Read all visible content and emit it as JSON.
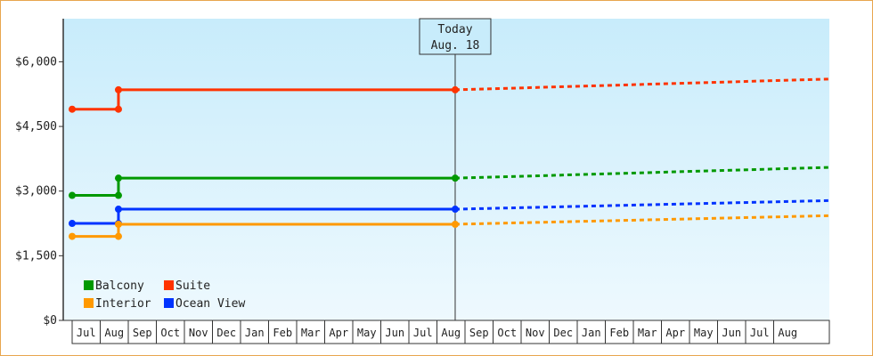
{
  "chart_data": {
    "type": "line",
    "title": "",
    "xlabel": "",
    "ylabel": "",
    "ylim": [
      0,
      7000
    ],
    "y_ticks": [
      {
        "value": 0,
        "label": "$0"
      },
      {
        "value": 1500,
        "label": "$1,500"
      },
      {
        "value": 3000,
        "label": "$3,000"
      },
      {
        "value": 4500,
        "label": "$4,500"
      },
      {
        "value": 6000,
        "label": "$6,000"
      }
    ],
    "x_months": [
      "Jul",
      "Aug",
      "Sep",
      "Oct",
      "Nov",
      "Dec",
      "Jan",
      "Feb",
      "Mar",
      "Apr",
      "May",
      "Jun",
      "Jul",
      "Aug",
      "Sep",
      "Oct",
      "Nov",
      "Dec",
      "Jan",
      "Feb",
      "Mar",
      "Apr",
      "May",
      "Jun",
      "Jul",
      "Aug"
    ],
    "today": {
      "line1": "Today",
      "line2": "Aug. 18",
      "month_pos": 13.15
    },
    "legend": {
      "placement": "bottom-left"
    },
    "series": [
      {
        "name": "Suite",
        "color": "#ff3300",
        "history": [
          [
            -0.5,
            4900
          ],
          [
            1.15,
            4900
          ],
          [
            1.15,
            5350
          ],
          [
            13.15,
            5350
          ]
        ],
        "forecast": [
          [
            13.15,
            5350
          ],
          [
            26.7,
            5600
          ]
        ]
      },
      {
        "name": "Balcony",
        "color": "#009900",
        "history": [
          [
            -0.5,
            2900
          ],
          [
            1.15,
            2900
          ],
          [
            1.15,
            3300
          ],
          [
            13.15,
            3300
          ]
        ],
        "forecast": [
          [
            13.15,
            3300
          ],
          [
            26.7,
            3550
          ]
        ]
      },
      {
        "name": "Ocean View",
        "color": "#0033ff",
        "history": [
          [
            -0.5,
            2250
          ],
          [
            1.15,
            2250
          ],
          [
            1.15,
            2580
          ],
          [
            13.15,
            2580
          ]
        ],
        "forecast": [
          [
            13.15,
            2580
          ],
          [
            26.7,
            2780
          ]
        ]
      },
      {
        "name": "Interior",
        "color": "#ff9900",
        "history": [
          [
            -0.5,
            1950
          ],
          [
            1.15,
            1950
          ],
          [
            1.15,
            2230
          ],
          [
            13.15,
            2230
          ]
        ],
        "forecast": [
          [
            13.15,
            2230
          ],
          [
            26.7,
            2430
          ]
        ]
      }
    ]
  }
}
